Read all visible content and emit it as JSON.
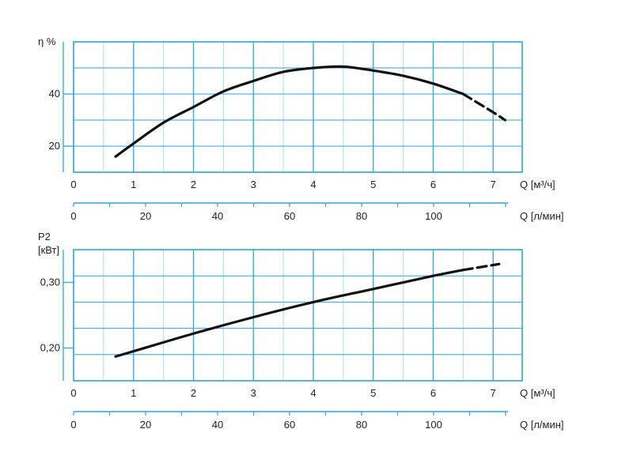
{
  "chart_data": [
    {
      "type": "line",
      "ylabel": "η %",
      "xlabel": "Q [м³/ч]",
      "x2label": "Q [л/мин]",
      "xlim": [
        0,
        7.5
      ],
      "ylim": [
        10,
        60
      ],
      "x_ticks": [
        "0",
        "1",
        "2",
        "3",
        "4",
        "5",
        "6",
        "7"
      ],
      "x2_ticks": [
        "0",
        "20",
        "40",
        "60",
        "80",
        "100"
      ],
      "y_ticks": [
        "20",
        "40"
      ],
      "grid": true,
      "series": [
        {
          "x": [
            0.7,
            1,
            1.5,
            2,
            2.5,
            3,
            3.5,
            4,
            4.5,
            5,
            5.5,
            6,
            6.5
          ],
          "y": [
            16,
            21,
            29,
            35,
            41,
            45,
            48.5,
            50,
            50.5,
            49,
            47,
            44,
            40
          ]
        },
        {
          "style": "dashed",
          "x": [
            6.5,
            7,
            7.2
          ],
          "y": [
            40,
            33,
            30
          ]
        }
      ]
    },
    {
      "type": "line",
      "ylabel": "P2",
      "ylabel2": "[кВт]",
      "xlabel": "Q [м³/ч]",
      "x2label": "Q [л/мин]",
      "xlim": [
        0,
        7.5
      ],
      "ylim": [
        0.15,
        0.35
      ],
      "x_ticks": [
        "0",
        "1",
        "2",
        "3",
        "4",
        "5",
        "6",
        "7"
      ],
      "x2_ticks": [
        "0",
        "20",
        "40",
        "60",
        "80",
        "100"
      ],
      "y_ticks": [
        "0,20",
        "0,30"
      ],
      "grid": true,
      "series": [
        {
          "x": [
            0.7,
            1,
            2,
            3,
            4,
            5,
            6,
            6.5
          ],
          "y": [
            0.187,
            0.195,
            0.222,
            0.247,
            0.27,
            0.29,
            0.31,
            0.319
          ]
        },
        {
          "style": "dashed",
          "x": [
            6.5,
            7.1
          ],
          "y": [
            0.319,
            0.328
          ]
        }
      ]
    }
  ],
  "colors": {
    "grid": "#2aa7dc",
    "grid_minor": "#a9dcf1",
    "curve": "#111111"
  }
}
